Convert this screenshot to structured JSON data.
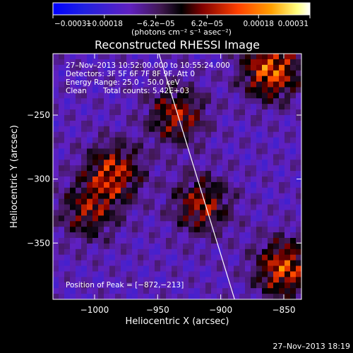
{
  "chart_data": {
    "type": "heatmap",
    "title": "Reconstructed RHESSI Image",
    "xlabel": "Heliocentric X (arcsec)",
    "ylabel": "Heliocentric Y (arcsec)",
    "xlim": [
      -1033,
      -836
    ],
    "ylim": [
      -394,
      -202
    ],
    "x_ticks": [
      {
        "value": -1000,
        "label": "−1000"
      },
      {
        "value": -950,
        "label": "−950"
      },
      {
        "value": -900,
        "label": "−900"
      },
      {
        "value": -850,
        "label": "−850"
      }
    ],
    "y_ticks": [
      {
        "value": -250,
        "label": "−250"
      },
      {
        "value": -300,
        "label": "−300"
      },
      {
        "value": -350,
        "label": "−350"
      }
    ],
    "colorbar": {
      "range": [
        -0.00031,
        0.00031
      ],
      "tick_labels": [
        "−0.00031",
        "−0.00018",
        "−6.2e−05",
        "6.2e−05",
        "0.00018",
        "0.00031"
      ],
      "unit_label": "(photons cm⁻² s⁻¹ asec⁻²)",
      "colors": [
        "#0000ff",
        "#2020e0",
        "#6020c0",
        "#401850",
        "#000000",
        "#800000",
        "#ff4000",
        "#ffa000",
        "#ffff80",
        "#ffffff"
      ]
    },
    "annotations": {
      "time_range": "27–Nov–2013 10:52:00.000 to 10:55:24.000",
      "detectors": "Detectors: 3F 5F 6F 7F 8F 9F, Att 0",
      "energy": "Energy Range: 25.0 – 50.0 keV",
      "clean": "Clean",
      "counts": "Total counts: 5.42E+03",
      "peak": "Position of Peak = [−872,−213]"
    },
    "limb_line": {
      "x": [
        -949,
        -889
      ],
      "y": [
        -202,
        -394
      ]
    },
    "hot_regions": [
      {
        "x": -860,
        "y": -215,
        "intensity": 1.0
      },
      {
        "x": -850,
        "y": -370,
        "intensity": 0.9
      },
      {
        "x": -985,
        "y": -295,
        "intensity": 0.8
      },
      {
        "x": -935,
        "y": -250,
        "intensity": 0.7
      },
      {
        "x": -915,
        "y": -320,
        "intensity": 0.7
      },
      {
        "x": -1005,
        "y": -325,
        "intensity": 0.6
      }
    ]
  },
  "footer": {
    "timestamp": "27–Nov–2013 18:19"
  }
}
